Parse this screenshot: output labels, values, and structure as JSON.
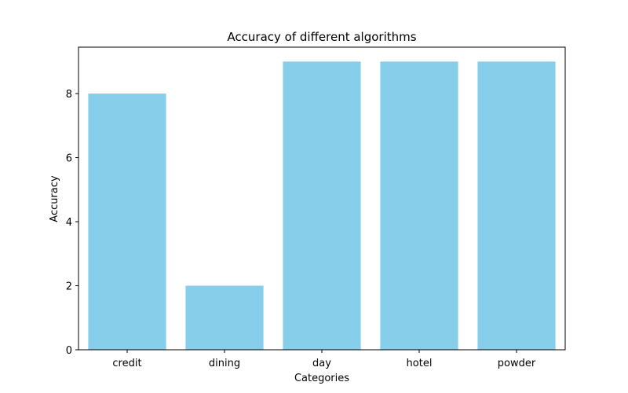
{
  "chart_data": {
    "type": "bar",
    "title": "Accuracy of different algorithms",
    "xlabel": "Categories",
    "ylabel": "Accuracy",
    "categories": [
      "credit",
      "dining",
      "day",
      "hotel",
      "powder"
    ],
    "values": [
      8,
      2,
      9,
      9,
      9
    ],
    "ylim": [
      0,
      9.45
    ],
    "yticks": [
      0,
      2,
      4,
      6,
      8
    ],
    "bar_color": "#87ceeb",
    "grid": false,
    "legend": "none"
  }
}
